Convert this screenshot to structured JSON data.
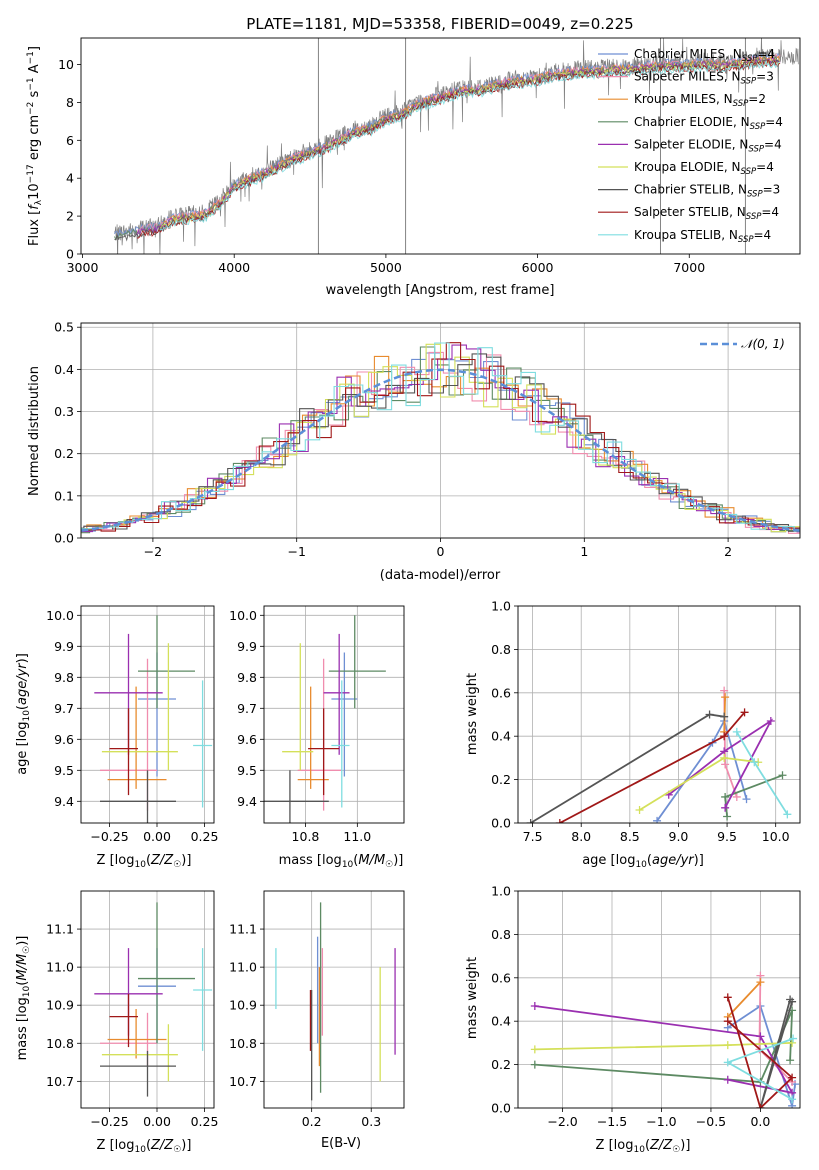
{
  "figure": {
    "background": "#ffffff",
    "grid_color": "#b0b0b0"
  },
  "chart_data": [
    {
      "id": "spectrum",
      "type": "line",
      "title": "PLATE=1181, MJD=53358, FIBERID=0049, z=0.225",
      "xlabel": "wavelength [Angstrom, rest frame]",
      "ylabel": "Flux [f_λ 10^-17 erg cm^-2 s^-1 A^-1]",
      "xlim": [
        2990,
        7730
      ],
      "ylim": [
        0,
        11.4
      ],
      "xticks": [
        3000,
        4000,
        5000,
        6000,
        7000
      ],
      "yticks": [
        0,
        2,
        4,
        6,
        8,
        10
      ],
      "grid": false,
      "legend_position": "top-right",
      "data_series": {
        "name": "",
        "color": "#808080",
        "x": [
          3210,
          3300,
          3400,
          3500,
          3600,
          3700,
          3800,
          3900,
          4000,
          4100,
          4200,
          4300,
          4400,
          4500,
          4600,
          4700,
          4800,
          4900,
          5000,
          5100,
          5200,
          5300,
          5400,
          5500,
          5600,
          5700,
          5800,
          5900,
          6000,
          6100,
          6200,
          6300,
          6400,
          6500,
          6600,
          6700,
          6800,
          6900,
          7000,
          7100,
          7200,
          7300,
          7400,
          7500
        ],
        "y": [
          1.1,
          1.2,
          1.4,
          1.5,
          2.0,
          2.1,
          2.2,
          2.8,
          3.7,
          4.1,
          4.4,
          4.8,
          5.2,
          5.5,
          5.8,
          6.2,
          6.6,
          6.8,
          7.3,
          7.5,
          8.0,
          8.3,
          8.5,
          8.8,
          8.8,
          9.0,
          9.2,
          9.3,
          9.4,
          9.6,
          9.7,
          9.8,
          9.8,
          9.9,
          9.9,
          10.0,
          10.1,
          10.1,
          10.1,
          10.2,
          10.1,
          10.2,
          10.3,
          10.4
        ]
      },
      "model_series": [
        {
          "name": "Chabrier MILES, N_SSP=4",
          "label_main": "Chabrier MILES, N",
          "label_sub": "SSP",
          "label_tail": "=4",
          "color": "#6f8fd3"
        },
        {
          "name": "Salpeter MILES, N_SSP=3",
          "label_main": "Salpeter MILES, N",
          "label_sub": "SSP",
          "label_tail": "=3",
          "color": "#f08dae"
        },
        {
          "name": "Kroupa MILES, N_SSP=2",
          "label_main": "Kroupa MILES, N",
          "label_sub": "SSP",
          "label_tail": "=2",
          "color": "#e88b2e"
        },
        {
          "name": "Chabrier ELODIE, N_SSP=4",
          "label_main": "Chabrier ELODIE, N",
          "label_sub": "SSP",
          "label_tail": "=4",
          "color": "#5d8a63"
        },
        {
          "name": "Salpeter ELODIE, N_SSP=4",
          "label_main": "Salpeter ELODIE, N",
          "label_sub": "SSP",
          "label_tail": "=4",
          "color": "#9a2fb0"
        },
        {
          "name": "Kroupa ELODIE, N_SSP=4",
          "label_main": "Kroupa ELODIE, N",
          "label_sub": "SSP",
          "label_tail": "=4",
          "color": "#d4e05a"
        },
        {
          "name": "Chabrier STELIB, N_SSP=3",
          "label_main": "Chabrier STELIB, N",
          "label_sub": "SSP",
          "label_tail": "=3",
          "color": "#555555"
        },
        {
          "name": "Salpeter STELIB, N_SSP=4",
          "label_main": "Salpeter STELIB, N",
          "label_sub": "SSP",
          "label_tail": "=4",
          "color": "#a01818"
        },
        {
          "name": "Kroupa STELIB, N_SSP=4",
          "label_main": "Kroupa STELIB, N",
          "label_sub": "SSP",
          "label_tail": "=4",
          "color": "#7fdde0"
        }
      ]
    },
    {
      "id": "residuals",
      "type": "histogram",
      "xlabel": "(data-model)/error",
      "ylabel": "Normed distribution",
      "xlim": [
        -2.5,
        2.5
      ],
      "ylim": [
        0,
        0.51
      ],
      "xticks": [
        -2,
        -1,
        0,
        1,
        2
      ],
      "yticks": [
        0.0,
        0.1,
        0.2,
        0.3,
        0.4,
        0.5
      ],
      "grid": true,
      "legend_position": "top-right",
      "reference_curve": {
        "name": "N(0,1)",
        "label": "𝒩(0, 1)",
        "color": "#5b8fd8"
      },
      "bin_width": 0.1
    },
    {
      "id": "z_age",
      "type": "errorbar",
      "xlabel": "Z [log10(Z/Z☉)]",
      "ylabel": "age [log10(age/yr)]",
      "xlim": [
        -0.4,
        0.3
      ],
      "ylim": [
        9.33,
        10.03
      ],
      "xticks": [
        -0.25,
        0.0,
        0.25
      ],
      "xtick_labels": [
        "−0.25",
        "0.00",
        "0.25"
      ],
      "yticks": [
        9.4,
        9.5,
        9.6,
        9.7,
        9.8,
        9.9,
        10.0
      ],
      "grid": true,
      "points": [
        {
          "x": 0.0,
          "y": 9.73,
          "xerr": [
            0.1,
            0.1
          ],
          "yerr": [
            0.25,
            0.15
          ]
        },
        {
          "x": -0.05,
          "y": 9.5,
          "xerr": [
            0.25,
            0.05
          ],
          "yerr": [
            0.13,
            0.36
          ]
        },
        {
          "x": -0.11,
          "y": 9.47,
          "xerr": [
            0.15,
            0.16
          ],
          "yerr": [
            0.03,
            0.3
          ]
        },
        {
          "x": 0.0,
          "y": 9.82,
          "xerr": [
            0.1,
            0.2
          ],
          "yerr": [
            0.12,
            0.18
          ]
        },
        {
          "x": -0.15,
          "y": 9.75,
          "xerr": [
            0.18,
            0.18
          ],
          "yerr": [
            0.2,
            0.19
          ]
        },
        {
          "x": 0.06,
          "y": 9.56,
          "xerr": [
            0.35,
            0.05
          ],
          "yerr": [
            0.06,
            0.35
          ]
        },
        {
          "x": -0.05,
          "y": 9.4,
          "xerr": [
            0.25,
            0.15
          ],
          "yerr": [
            0.12,
            0.1
          ]
        },
        {
          "x": -0.15,
          "y": 9.57,
          "xerr": [
            0.1,
            0.05
          ],
          "yerr": [
            0.15,
            0.13
          ]
        },
        {
          "x": 0.24,
          "y": 9.58,
          "xerr": [
            0.05,
            0.05
          ],
          "yerr": [
            0.2,
            0.21
          ]
        }
      ]
    },
    {
      "id": "mass_age",
      "type": "errorbar",
      "xlabel": "mass [log10(M/M☉)]",
      "xlim": [
        10.64,
        11.18
      ],
      "ylim": [
        9.33,
        10.03
      ],
      "xticks": [
        10.8,
        11.0
      ],
      "yticks": [
        9.4,
        9.5,
        9.6,
        9.7,
        9.8,
        9.9,
        10.0
      ],
      "grid": true,
      "points": [
        {
          "x": 10.95,
          "y": 9.73,
          "xerr": [
            0.05,
            0.05
          ],
          "yerr": [
            0.25,
            0.15
          ]
        },
        {
          "x": 10.87,
          "y": 9.5,
          "xerr": [
            0.1,
            0.07
          ],
          "yerr": [
            0.13,
            0.36
          ]
        },
        {
          "x": 10.82,
          "y": 9.47,
          "xerr": [
            0.05,
            0.07
          ],
          "yerr": [
            0.03,
            0.3
          ]
        },
        {
          "x": 10.99,
          "y": 9.82,
          "xerr": [
            0.1,
            0.12
          ],
          "yerr": [
            0.12,
            0.18
          ]
        },
        {
          "x": 10.93,
          "y": 9.75,
          "xerr": [
            0.06,
            0.04
          ],
          "yerr": [
            0.2,
            0.19
          ]
        },
        {
          "x": 10.78,
          "y": 9.56,
          "xerr": [
            0.07,
            0.05
          ],
          "yerr": [
            0.06,
            0.35
          ]
        },
        {
          "x": 10.74,
          "y": 9.4,
          "xerr": [
            0.1,
            0.15
          ],
          "yerr": [
            0.12,
            0.1
          ]
        },
        {
          "x": 10.87,
          "y": 9.57,
          "xerr": [
            0.06,
            0.06
          ],
          "yerr": [
            0.15,
            0.13
          ]
        },
        {
          "x": 10.94,
          "y": 9.58,
          "xerr": [
            0.04,
            0.03
          ],
          "yerr": [
            0.2,
            0.21
          ]
        }
      ]
    },
    {
      "id": "age_weight",
      "type": "line",
      "xlabel": "age [log10(age/yr)]",
      "ylabel": "mass weight",
      "xlim": [
        7.35,
        10.25
      ],
      "ylim": [
        0,
        1.0
      ],
      "xticks": [
        7.5,
        8.0,
        8.5,
        9.0,
        9.5,
        10.0
      ],
      "yticks": [
        0.0,
        0.2,
        0.4,
        0.6,
        0.8,
        1.0
      ],
      "grid": true,
      "series": [
        {
          "x": [
            8.78,
            9.35,
            9.47,
            9.7
          ],
          "y": [
            0.01,
            0.37,
            0.47,
            0.11
          ]
        },
        {
          "x": [
            9.47,
            9.48,
            9.6
          ],
          "y": [
            0.61,
            0.27,
            0.12
          ]
        },
        {
          "x": [
            9.48,
            9.47
          ],
          "y": [
            0.58,
            0.42
          ]
        },
        {
          "x": [
            10.07,
            9.48,
            9.5
          ],
          "y": [
            0.22,
            0.12,
            0.03
          ]
        },
        {
          "x": [
            8.9,
            9.47,
            9.95,
            9.48
          ],
          "y": [
            0.13,
            0.33,
            0.47,
            0.07
          ]
        },
        {
          "x": [
            8.6,
            9.47,
            9.82
          ],
          "y": [
            0.06,
            0.3,
            0.28
          ]
        },
        {
          "x": [
            7.48,
            9.32,
            9.47
          ],
          "y": [
            0.0,
            0.5,
            0.49
          ]
        },
        {
          "x": [
            7.78,
            9.47,
            9.68
          ],
          "y": [
            0.0,
            0.4,
            0.51
          ]
        },
        {
          "x": [
            10.12,
            9.78,
            9.6
          ],
          "y": [
            0.04,
            0.28,
            0.42
          ]
        }
      ]
    },
    {
      "id": "z_mass",
      "type": "errorbar",
      "xlabel": "Z [log10(Z/Z☉)]",
      "ylabel": "mass [log10(M/M☉)]",
      "xlim": [
        -0.4,
        0.3
      ],
      "ylim": [
        10.63,
        11.2
      ],
      "xticks": [
        -0.25,
        0.0,
        0.25
      ],
      "xtick_labels": [
        "−0.25",
        "0.00",
        "0.25"
      ],
      "yticks": [
        10.7,
        10.8,
        10.9,
        11.0,
        11.1
      ],
      "grid": true,
      "points": [
        {
          "x": 0.0,
          "y": 10.95,
          "xerr": [
            0.1,
            0.1
          ],
          "yerr": [
            0.15,
            0.1
          ]
        },
        {
          "x": -0.05,
          "y": 10.8,
          "xerr": [
            0.25,
            0.05
          ],
          "yerr": [
            0.06,
            0.08
          ]
        },
        {
          "x": -0.11,
          "y": 10.81,
          "xerr": [
            0.15,
            0.16
          ],
          "yerr": [
            0.05,
            0.08
          ]
        },
        {
          "x": 0.0,
          "y": 10.97,
          "xerr": [
            0.1,
            0.2
          ],
          "yerr": [
            0.17,
            0.2
          ]
        },
        {
          "x": -0.15,
          "y": 10.93,
          "xerr": [
            0.18,
            0.18
          ],
          "yerr": [
            0.11,
            0.12
          ]
        },
        {
          "x": 0.06,
          "y": 10.77,
          "xerr": [
            0.35,
            0.05
          ],
          "yerr": [
            0.07,
            0.08
          ]
        },
        {
          "x": -0.05,
          "y": 10.74,
          "xerr": [
            0.25,
            0.15
          ],
          "yerr": [
            0.08,
            0.04
          ]
        },
        {
          "x": -0.15,
          "y": 10.87,
          "xerr": [
            0.1,
            0.05
          ],
          "yerr": [
            0.08,
            0.06
          ]
        },
        {
          "x": 0.24,
          "y": 10.94,
          "xerr": [
            0.05,
            0.05
          ],
          "yerr": [
            0.16,
            0.11
          ]
        }
      ]
    },
    {
      "id": "ebv_mass",
      "type": "errorbar",
      "xlabel": "E(B-V)",
      "xlim": [
        0.12,
        0.355
      ],
      "ylim": [
        10.63,
        11.2
      ],
      "xticks": [
        0.2,
        0.3
      ],
      "yticks": [
        10.7,
        10.8,
        10.9,
        11.0,
        11.1
      ],
      "grid": true,
      "points": [
        {
          "x": 0.21,
          "y": 10.95,
          "yerr": [
            0.15,
            0.13
          ]
        },
        {
          "x": 0.218,
          "y": 10.9,
          "yerr": [
            0.08,
            0.15
          ]
        },
        {
          "x": 0.213,
          "y": 10.84,
          "yerr": [
            0.1,
            0.16
          ]
        },
        {
          "x": 0.215,
          "y": 10.97,
          "yerr": [
            0.3,
            0.2
          ]
        },
        {
          "x": 0.34,
          "y": 10.93,
          "yerr": [
            0.16,
            0.12
          ]
        },
        {
          "x": 0.315,
          "y": 10.84,
          "yerr": [
            0.14,
            0.16
          ]
        },
        {
          "x": 0.2,
          "y": 10.74,
          "yerr": [
            0.09,
            0.2
          ]
        },
        {
          "x": 0.198,
          "y": 10.87,
          "yerr": [
            0.09,
            0.07
          ]
        },
        {
          "x": 0.14,
          "y": 10.97,
          "yerr": [
            0.08,
            0.08
          ]
        }
      ]
    },
    {
      "id": "z_weight",
      "type": "line",
      "xlabel": "Z [log10(Z/Z☉)]",
      "ylabel": "mass weight",
      "xlim": [
        -2.45,
        0.4
      ],
      "ylim": [
        0,
        1.0
      ],
      "xticks": [
        -2.0,
        -1.5,
        -1.0,
        -0.5,
        0.0
      ],
      "xtick_labels": [
        "−2.0",
        "−1.5",
        "−1.0",
        "−0.5",
        "0.0"
      ],
      "yticks": [
        0.0,
        0.2,
        0.4,
        0.6,
        0.8,
        1.0
      ],
      "grid": true,
      "series": [
        {
          "x": [
            -0.33,
            0.0,
            0.32,
            0.35
          ],
          "y": [
            0.37,
            0.47,
            0.01,
            0.11
          ]
        },
        {
          "x": [
            0.0,
            -0.01,
            0.32
          ],
          "y": [
            0.61,
            0.27,
            0.12
          ]
        },
        {
          "x": [
            0.0,
            -0.33
          ],
          "y": [
            0.58,
            0.42
          ]
        },
        {
          "x": [
            -2.28,
            0.0,
            0.32,
            0.3
          ],
          "y": [
            0.2,
            0.12,
            0.45,
            0.22
          ]
        },
        {
          "x": [
            -2.28,
            0.0,
            0.32,
            -0.33
          ],
          "y": [
            0.47,
            0.33,
            0.07,
            0.13
          ]
        },
        {
          "x": [
            -2.28,
            -0.33,
            0.32
          ],
          "y": [
            0.27,
            0.29,
            0.3
          ]
        },
        {
          "x": [
            0.3,
            0.0,
            0.32
          ],
          "y": [
            0.5,
            0.0,
            0.49
          ]
        },
        {
          "x": [
            -0.33,
            0.0,
            0.32,
            -0.33
          ],
          "y": [
            0.51,
            0.0,
            0.14,
            0.4
          ]
        },
        {
          "x": [
            0.32,
            -0.33,
            0.33
          ],
          "y": [
            0.04,
            0.21,
            0.32
          ]
        }
      ]
    }
  ]
}
